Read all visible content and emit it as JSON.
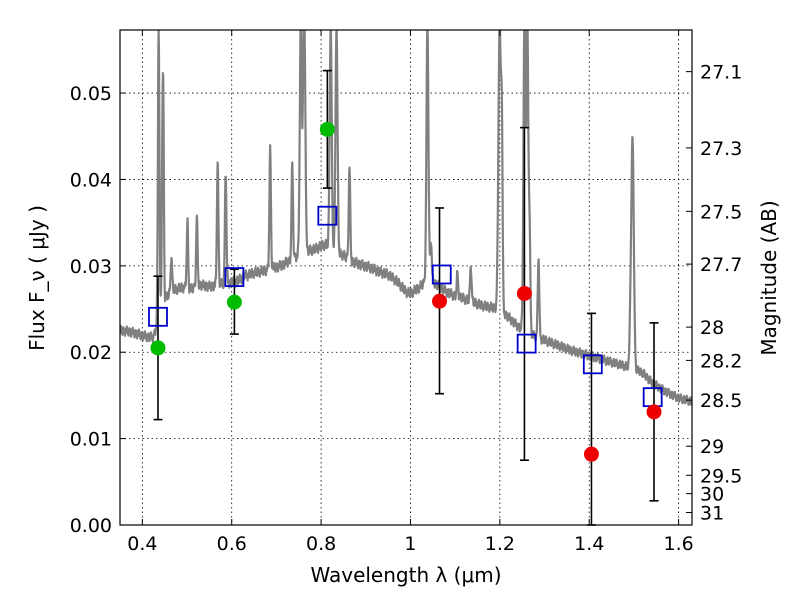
{
  "chart_data": {
    "type": "scatter",
    "xlabel": "Wavelength  λ (μm)",
    "ylabel": "Flux  F_ν  ( μJy )",
    "y2label": "Magnitude (AB)",
    "xlim": [
      0.35,
      1.63
    ],
    "ylim": [
      0.0,
      0.0573
    ],
    "grid": true,
    "x_ticks": [
      0.4,
      0.6,
      0.8,
      1.0,
      1.2,
      1.4,
      1.6
    ],
    "x_tick_labels": [
      "0.4",
      "0.6",
      "0.8",
      "1",
      "1.2",
      "1.4",
      "1.6"
    ],
    "y_ticks": [
      0.0,
      0.01,
      0.02,
      0.03,
      0.04,
      0.05
    ],
    "y_tick_labels": [
      "0.00",
      "0.01",
      "0.02",
      "0.03",
      "0.04",
      "0.05"
    ],
    "mag_ticks": [
      27.1,
      27.3,
      27.5,
      27.7,
      28,
      28.2,
      28.5,
      29,
      29.5,
      30,
      31
    ],
    "mag_tick_labels": [
      "27.1",
      "27.3",
      "27.5",
      "27.7",
      "28",
      "28.2",
      "28.5",
      "29",
      "29.5",
      "30",
      "31"
    ],
    "colors": {
      "model": "#808080",
      "model_photometry": "#0000cc",
      "detection": "#00bb00",
      "non_detection": "#ee0000",
      "error_bar": "#000000"
    },
    "observed": [
      {
        "x": 0.435,
        "y": 0.0205,
        "err_low": 0.0122,
        "err_high": 0.0288,
        "status": "detection"
      },
      {
        "x": 0.606,
        "y": 0.0258,
        "err_low": 0.0221,
        "err_high": 0.0296,
        "status": "detection"
      },
      {
        "x": 0.814,
        "y": 0.0458,
        "err_low": 0.039,
        "err_high": 0.0526,
        "status": "detection"
      },
      {
        "x": 1.065,
        "y": 0.0259,
        "err_low": 0.0152,
        "err_high": 0.0367,
        "status": "non_detection"
      },
      {
        "x": 1.255,
        "y": 0.0268,
        "err_low": 0.0075,
        "err_high": 0.046,
        "status": "non_detection"
      },
      {
        "x": 1.405,
        "y": 0.0082,
        "err_low": 0.0,
        "err_high": 0.0245,
        "status": "non_detection"
      },
      {
        "x": 1.545,
        "y": 0.0131,
        "err_low": 0.0028,
        "err_high": 0.0234,
        "status": "non_detection"
      }
    ],
    "model_photometry": [
      {
        "x": 0.435,
        "y": 0.0241
      },
      {
        "x": 0.606,
        "y": 0.0287
      },
      {
        "x": 0.814,
        "y": 0.0358
      },
      {
        "x": 1.07,
        "y": 0.029
      },
      {
        "x": 1.26,
        "y": 0.021
      },
      {
        "x": 1.408,
        "y": 0.0186
      },
      {
        "x": 1.542,
        "y": 0.0148
      }
    ],
    "model_spectrum": {
      "continuum": [
        [
          0.35,
          0.0225
        ],
        [
          0.37,
          0.0224
        ],
        [
          0.39,
          0.0221
        ],
        [
          0.41,
          0.0218
        ],
        [
          0.425,
          0.0217
        ],
        [
          0.44,
          0.0245
        ],
        [
          0.45,
          0.0262
        ],
        [
          0.47,
          0.0272
        ],
        [
          0.49,
          0.0275
        ],
        [
          0.51,
          0.0273
        ],
        [
          0.53,
          0.0278
        ],
        [
          0.55,
          0.0276
        ],
        [
          0.57,
          0.0278
        ],
        [
          0.59,
          0.028
        ],
        [
          0.61,
          0.0282
        ],
        [
          0.63,
          0.0288
        ],
        [
          0.65,
          0.0292
        ],
        [
          0.67,
          0.0294
        ],
        [
          0.69,
          0.0297
        ],
        [
          0.71,
          0.03
        ],
        [
          0.73,
          0.0306
        ],
        [
          0.75,
          0.0312
        ],
        [
          0.77,
          0.0317
        ],
        [
          0.79,
          0.032
        ],
        [
          0.8,
          0.0323
        ],
        [
          0.81,
          0.0325
        ],
        [
          0.83,
          0.0318
        ],
        [
          0.85,
          0.0312
        ],
        [
          0.87,
          0.0305
        ],
        [
          0.89,
          0.0301
        ],
        [
          0.91,
          0.0298
        ],
        [
          0.93,
          0.0293
        ],
        [
          0.95,
          0.029
        ],
        [
          0.97,
          0.0282
        ],
        [
          0.99,
          0.027
        ],
        [
          1.0,
          0.0268
        ],
        [
          1.02,
          0.0275
        ],
        [
          1.04,
          0.0285
        ],
        [
          1.06,
          0.0278
        ],
        [
          1.08,
          0.027
        ],
        [
          1.1,
          0.0265
        ],
        [
          1.12,
          0.0262
        ],
        [
          1.14,
          0.0258
        ],
        [
          1.16,
          0.0254
        ],
        [
          1.18,
          0.0252
        ],
        [
          1.2,
          0.025
        ],
        [
          1.22,
          0.024
        ],
        [
          1.24,
          0.023
        ],
        [
          1.26,
          0.0223
        ],
        [
          1.28,
          0.0218
        ],
        [
          1.3,
          0.0214
        ],
        [
          1.32,
          0.021
        ],
        [
          1.34,
          0.0206
        ],
        [
          1.36,
          0.0202
        ],
        [
          1.38,
          0.0199
        ],
        [
          1.4,
          0.0196
        ],
        [
          1.42,
          0.0193
        ],
        [
          1.44,
          0.019
        ],
        [
          1.46,
          0.0187
        ],
        [
          1.48,
          0.0184
        ],
        [
          1.5,
          0.0181
        ],
        [
          1.52,
          0.0176
        ],
        [
          1.54,
          0.0165
        ],
        [
          1.56,
          0.0158
        ],
        [
          1.58,
          0.0152
        ],
        [
          1.6,
          0.0147
        ],
        [
          1.63,
          0.0143
        ]
      ],
      "lines": [
        {
          "x": 0.4365,
          "peak": 0.058,
          "width": 0.003
        },
        {
          "x": 0.4455,
          "peak": 0.049,
          "width": 0.003
        },
        {
          "x": 0.4475,
          "peak": 0.036,
          "width": 0.002
        },
        {
          "x": 0.465,
          "peak": 0.031,
          "width": 0.003
        },
        {
          "x": 0.5005,
          "peak": 0.033,
          "width": 0.003
        },
        {
          "x": 0.522,
          "peak": 0.0355,
          "width": 0.003
        },
        {
          "x": 0.5015,
          "peak": 0.03,
          "width": 0.002
        },
        {
          "x": 0.5685,
          "peak": 0.042,
          "width": 0.003
        },
        {
          "x": 0.5865,
          "peak": 0.041,
          "width": 0.003
        },
        {
          "x": 0.6295,
          "peak": 0.029,
          "width": 0.003
        },
        {
          "x": 0.686,
          "peak": 0.0435,
          "width": 0.003
        },
        {
          "x": 0.7355,
          "peak": 0.0418,
          "width": 0.003
        },
        {
          "x": 0.7545,
          "peak": 0.058,
          "width": 0.004
        },
        {
          "x": 0.7615,
          "peak": 0.058,
          "width": 0.004
        },
        {
          "x": 0.7645,
          "peak": 0.0398,
          "width": 0.003
        },
        {
          "x": 0.8215,
          "peak": 0.058,
          "width": 0.004
        },
        {
          "x": 0.8345,
          "peak": 0.058,
          "width": 0.004
        },
        {
          "x": 0.8635,
          "peak": 0.0415,
          "width": 0.003
        },
        {
          "x": 1.038,
          "peak": 0.058,
          "width": 0.004
        },
        {
          "x": 1.046,
          "peak": 0.033,
          "width": 0.003
        },
        {
          "x": 1.105,
          "peak": 0.029,
          "width": 0.003
        },
        {
          "x": 1.135,
          "peak": 0.03,
          "width": 0.003
        },
        {
          "x": 1.1995,
          "peak": 0.058,
          "width": 0.005
        },
        {
          "x": 1.2045,
          "peak": 0.044,
          "width": 0.003
        },
        {
          "x": 1.255,
          "peak": 0.058,
          "width": 0.004
        },
        {
          "x": 1.2615,
          "peak": 0.058,
          "width": 0.004
        },
        {
          "x": 1.2665,
          "peak": 0.034,
          "width": 0.003
        },
        {
          "x": 1.2865,
          "peak": 0.031,
          "width": 0.003
        },
        {
          "x": 1.497,
          "peak": 0.045,
          "width": 0.005
        },
        {
          "x": 1.492,
          "peak": 0.023,
          "width": 0.003
        }
      ]
    }
  }
}
